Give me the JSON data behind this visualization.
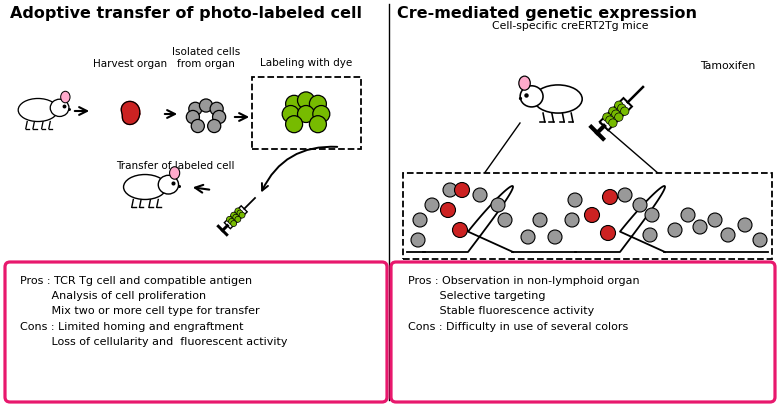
{
  "left_title": "Adoptive transfer of photo-labeled cell",
  "right_title": "Cre-mediated genetic expression",
  "left_pros_cons": [
    "Pros : TCR Tg cell and compatible antigen",
    "         Analysis of cell proliferation",
    "         Mix two or more cell type for transfer",
    "Cons : Limited homing and engraftment",
    "         Loss of cellularity and  fluorescent activity"
  ],
  "right_pros_cons": [
    "Pros : Observation in non-lymphoid organ",
    "         Selective targeting",
    "         Stable fluorescence activity",
    "Cons : Difficulty in use of several colors"
  ],
  "bg_color": "#ffffff",
  "title_color": "#000000",
  "box_border_color": "#e8186d",
  "text_color": "#000000",
  "organ_color": "#cc2222",
  "cell_gray": "#999999",
  "cell_green": "#77bb00",
  "cell_red": "#cc2222",
  "pink_ear": "#ffaacc",
  "arrow_color": "#000000"
}
